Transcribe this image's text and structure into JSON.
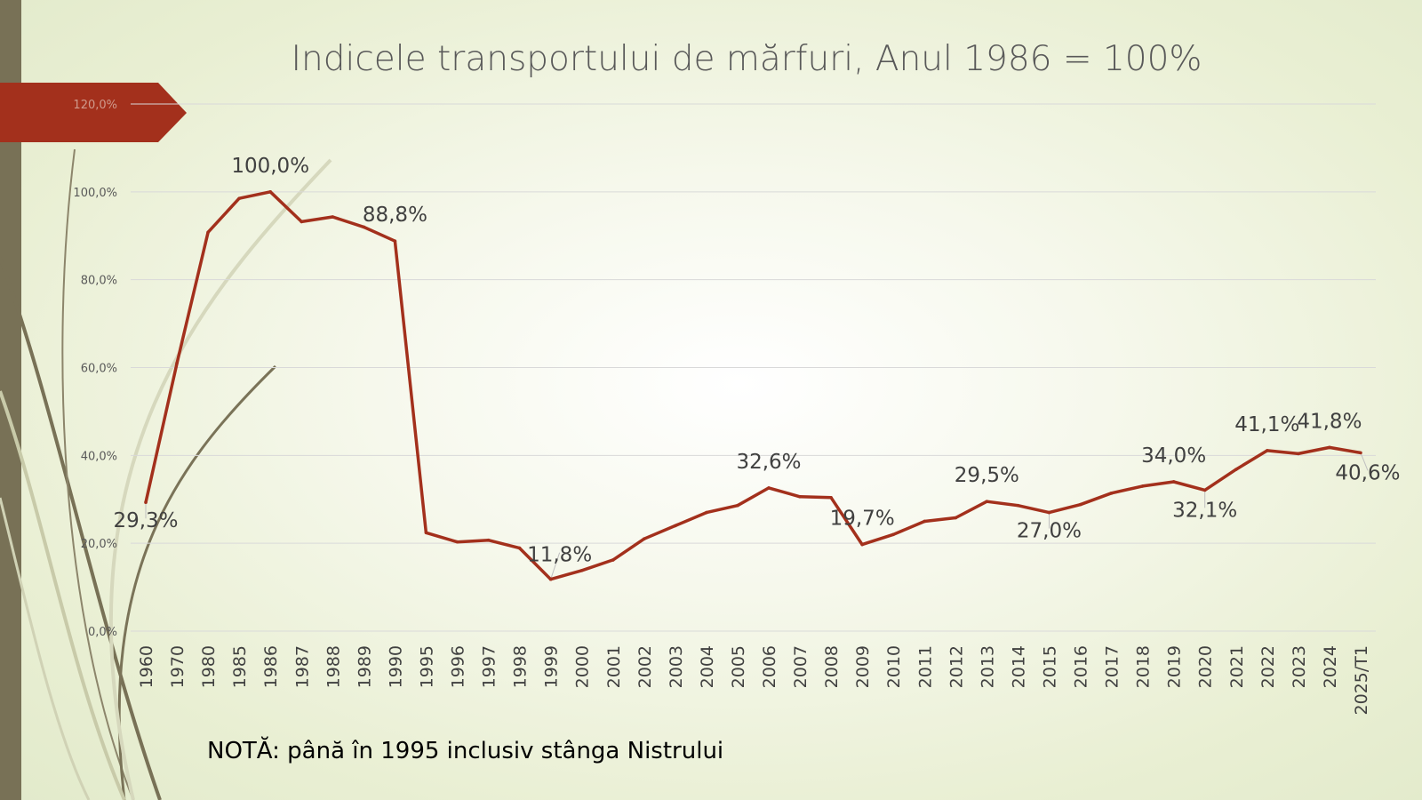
{
  "slide": {
    "title": "Indicele transportului de mărfuri, Anul 1986 = 100%",
    "note": "NOTĂ: până în 1995 inclusiv stânga Nistrului"
  },
  "colors": {
    "line": "#A3301C",
    "banner": "#A3301C",
    "left_bar": "#787156",
    "grid": "#d9d9d9",
    "tick_text": "#595959"
  },
  "chart_data": {
    "type": "line",
    "title": "Indicele transportului de mărfuri, Anul 1986 = 100%",
    "xlabel": "",
    "ylabel": "",
    "ylim": [
      0,
      120
    ],
    "yticks": [
      "0,0%",
      "20,0%",
      "40,0%",
      "60,0%",
      "80,0%",
      "100,0%",
      "120,0%"
    ],
    "grid": true,
    "legend": "none",
    "categories": [
      "1960",
      "1970",
      "1980",
      "1985",
      "1986",
      "1987",
      "1988",
      "1989",
      "1990",
      "1995",
      "1996",
      "1997",
      "1998",
      "1999",
      "2000",
      "2001",
      "2002",
      "2003",
      "2004",
      "2005",
      "2006",
      "2007",
      "2008",
      "2009",
      "2010",
      "2011",
      "2012",
      "2013",
      "2014",
      "2015",
      "2016",
      "2017",
      "2018",
      "2019",
      "2020",
      "2021",
      "2022",
      "2023",
      "2024",
      "2025/T1"
    ],
    "series": [
      {
        "values": [
          29.3,
          61.0,
          90.8,
          98.5,
          100.0,
          93.2,
          94.3,
          92.0,
          88.8,
          22.4,
          20.3,
          20.7,
          18.9,
          11.8,
          13.8,
          16.2,
          21.0,
          24.0,
          27.0,
          28.6,
          32.6,
          30.6,
          30.4,
          19.7,
          22.0,
          25.0,
          25.8,
          29.5,
          28.6,
          27.0,
          28.8,
          31.4,
          33.0,
          34.0,
          32.1,
          36.8,
          41.1,
          40.4,
          41.8,
          40.6
        ],
        "data_labels": [
          {
            "category": "1960",
            "text": "29,3%"
          },
          {
            "category": "1986",
            "text": "100,0%"
          },
          {
            "category": "1990",
            "text": "88,8%"
          },
          {
            "category": "1999",
            "text": "11,8%"
          },
          {
            "category": "2006",
            "text": "32,6%"
          },
          {
            "category": "2009",
            "text": "19,7%"
          },
          {
            "category": "2013",
            "text": "29,5%"
          },
          {
            "category": "2015",
            "text": "27,0%"
          },
          {
            "category": "2019",
            "text": "34,0%"
          },
          {
            "category": "2020",
            "text": "32,1%"
          },
          {
            "category": "2022",
            "text": "41,1%"
          },
          {
            "category": "2024",
            "text": "41,8%"
          },
          {
            "category": "2025/T1",
            "text": "40,6%"
          }
        ]
      }
    ]
  }
}
